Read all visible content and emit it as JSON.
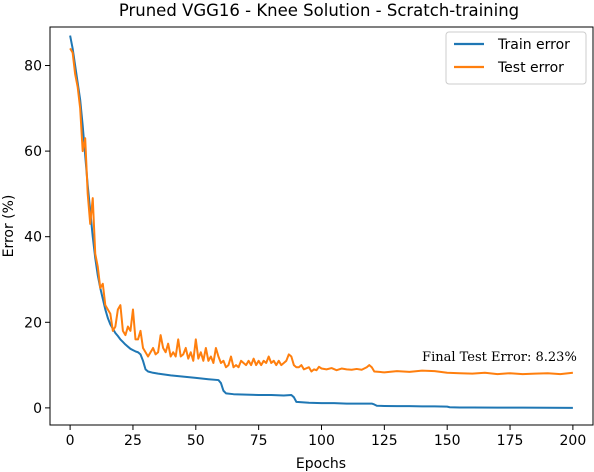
{
  "chart_data": {
    "type": "line",
    "title": "Pruned VGG16 - Knee Solution - Scratch-training",
    "xlabel": "Epochs",
    "ylabel": "Error (%)",
    "xlim": [
      -8,
      208
    ],
    "ylim": [
      -4,
      89
    ],
    "xticks": [
      0,
      25,
      50,
      75,
      100,
      125,
      150,
      175,
      200
    ],
    "yticks": [
      0,
      20,
      40,
      60,
      80
    ],
    "grid": false,
    "legend_position": "top-right",
    "annotation": {
      "text": "Final Test Error: 8.23%",
      "x": 140,
      "y": 11
    },
    "series": [
      {
        "name": "Train error",
        "color": "#1f77b4",
        "points": [
          [
            0,
            87
          ],
          [
            1,
            84
          ],
          [
            2,
            80
          ],
          [
            3,
            76
          ],
          [
            4,
            72
          ],
          [
            5,
            66
          ],
          [
            6,
            59
          ],
          [
            7,
            52
          ],
          [
            8,
            46
          ],
          [
            9,
            40
          ],
          [
            10,
            35
          ],
          [
            11,
            31
          ],
          [
            12,
            28
          ],
          [
            13,
            25.5
          ],
          [
            14,
            23
          ],
          [
            15,
            21
          ],
          [
            16,
            19.5
          ],
          [
            17,
            18.5
          ],
          [
            18,
            17.5
          ],
          [
            19,
            16.8
          ],
          [
            20,
            16
          ],
          [
            21,
            15.4
          ],
          [
            22,
            14.8
          ],
          [
            23,
            14.3
          ],
          [
            24,
            13.8
          ],
          [
            25,
            13.5
          ],
          [
            26,
            13.2
          ],
          [
            27,
            13
          ],
          [
            28,
            12.5
          ],
          [
            29,
            11
          ],
          [
            30,
            9
          ],
          [
            31,
            8.5
          ],
          [
            33,
            8.2
          ],
          [
            35,
            8
          ],
          [
            40,
            7.6
          ],
          [
            45,
            7.3
          ],
          [
            50,
            7
          ],
          [
            55,
            6.7
          ],
          [
            59,
            6.5
          ],
          [
            60,
            5.8
          ],
          [
            61,
            4
          ],
          [
            62,
            3.4
          ],
          [
            65,
            3.2
          ],
          [
            70,
            3.1
          ],
          [
            75,
            3
          ],
          [
            80,
            3
          ],
          [
            85,
            2.9
          ],
          [
            88,
            3
          ],
          [
            89,
            2.5
          ],
          [
            90,
            1.4
          ],
          [
            95,
            1.2
          ],
          [
            100,
            1.1
          ],
          [
            105,
            1.1
          ],
          [
            110,
            1
          ],
          [
            115,
            1
          ],
          [
            120,
            1
          ],
          [
            121,
            0.8
          ],
          [
            122,
            0.5
          ],
          [
            125,
            0.45
          ],
          [
            130,
            0.4
          ],
          [
            135,
            0.4
          ],
          [
            140,
            0.35
          ],
          [
            145,
            0.35
          ],
          [
            150,
            0.3
          ],
          [
            151,
            0.15
          ],
          [
            155,
            0.1
          ],
          [
            160,
            0.1
          ],
          [
            170,
            0.05
          ],
          [
            180,
            0.05
          ],
          [
            190,
            0.02
          ],
          [
            200,
            0
          ]
        ]
      },
      {
        "name": "Test error",
        "color": "#ff7f0e",
        "points": [
          [
            0,
            84
          ],
          [
            1,
            83
          ],
          [
            2,
            78
          ],
          [
            3,
            75
          ],
          [
            4,
            70
          ],
          [
            5,
            60
          ],
          [
            6,
            63
          ],
          [
            7,
            50
          ],
          [
            8,
            43
          ],
          [
            9,
            49
          ],
          [
            10,
            36
          ],
          [
            11,
            33
          ],
          [
            12,
            28
          ],
          [
            13,
            29
          ],
          [
            14,
            24
          ],
          [
            15,
            23
          ],
          [
            16,
            22
          ],
          [
            17,
            18
          ],
          [
            18,
            19
          ],
          [
            19,
            23
          ],
          [
            20,
            24
          ],
          [
            21,
            18
          ],
          [
            22,
            17
          ],
          [
            23,
            19
          ],
          [
            24,
            18
          ],
          [
            25,
            23
          ],
          [
            26,
            16
          ],
          [
            27,
            16
          ],
          [
            28,
            18
          ],
          [
            29,
            14
          ],
          [
            30,
            13
          ],
          [
            31,
            12
          ],
          [
            32,
            13
          ],
          [
            33,
            14
          ],
          [
            34,
            12.5
          ],
          [
            35,
            13
          ],
          [
            36,
            17
          ],
          [
            37,
            14
          ],
          [
            38,
            13
          ],
          [
            39,
            15
          ],
          [
            40,
            12
          ],
          [
            41,
            13
          ],
          [
            42,
            12
          ],
          [
            43,
            16
          ],
          [
            44,
            12
          ],
          [
            45,
            12.5
          ],
          [
            46,
            14
          ],
          [
            47,
            11.5
          ],
          [
            48,
            13
          ],
          [
            49,
            11
          ],
          [
            50,
            16
          ],
          [
            51,
            11.5
          ],
          [
            52,
            13
          ],
          [
            53,
            11
          ],
          [
            54,
            14
          ],
          [
            55,
            11
          ],
          [
            56,
            12
          ],
          [
            57,
            10.5
          ],
          [
            58,
            14
          ],
          [
            59,
            12
          ],
          [
            60,
            10.5
          ],
          [
            61,
            11
          ],
          [
            62,
            9.5
          ],
          [
            63,
            10
          ],
          [
            64,
            12
          ],
          [
            65,
            9.5
          ],
          [
            66,
            10
          ],
          [
            67,
            9.5
          ],
          [
            68,
            11
          ],
          [
            69,
            10.5
          ],
          [
            70,
            10
          ],
          [
            71,
            11
          ],
          [
            72,
            10
          ],
          [
            73,
            11.5
          ],
          [
            74,
            10
          ],
          [
            75,
            11
          ],
          [
            76,
            10
          ],
          [
            77,
            11
          ],
          [
            78,
            10.5
          ],
          [
            79,
            12
          ],
          [
            80,
            10.5
          ],
          [
            81,
            11
          ],
          [
            82,
            10
          ],
          [
            83,
            11
          ],
          [
            84,
            10
          ],
          [
            85,
            10.5
          ],
          [
            86,
            11
          ],
          [
            87,
            12.5
          ],
          [
            88,
            12
          ],
          [
            89,
            10
          ],
          [
            90,
            9.5
          ],
          [
            91,
            9.5
          ],
          [
            92,
            10
          ],
          [
            93,
            9
          ],
          [
            95,
            9.5
          ],
          [
            96,
            8.5
          ],
          [
            97,
            9
          ],
          [
            98,
            8.8
          ],
          [
            99,
            9.6
          ],
          [
            100,
            9.2
          ],
          [
            102,
            9
          ],
          [
            104,
            9.3
          ],
          [
            106,
            8.8
          ],
          [
            108,
            9.2
          ],
          [
            110,
            9
          ],
          [
            112,
            8.9
          ],
          [
            114,
            9.1
          ],
          [
            116,
            8.9
          ],
          [
            118,
            9.5
          ],
          [
            119,
            10
          ],
          [
            120,
            9.5
          ],
          [
            121,
            8.5
          ],
          [
            123,
            8.4
          ],
          [
            125,
            8.3
          ],
          [
            130,
            8.6
          ],
          [
            135,
            8.4
          ],
          [
            140,
            8.7
          ],
          [
            145,
            8.6
          ],
          [
            150,
            8.2
          ],
          [
            155,
            8.1
          ],
          [
            160,
            8
          ],
          [
            165,
            8.2
          ],
          [
            170,
            7.9
          ],
          [
            175,
            8.1
          ],
          [
            180,
            7.9
          ],
          [
            185,
            8
          ],
          [
            190,
            8.1
          ],
          [
            195,
            7.9
          ],
          [
            200,
            8.2
          ]
        ]
      }
    ]
  }
}
